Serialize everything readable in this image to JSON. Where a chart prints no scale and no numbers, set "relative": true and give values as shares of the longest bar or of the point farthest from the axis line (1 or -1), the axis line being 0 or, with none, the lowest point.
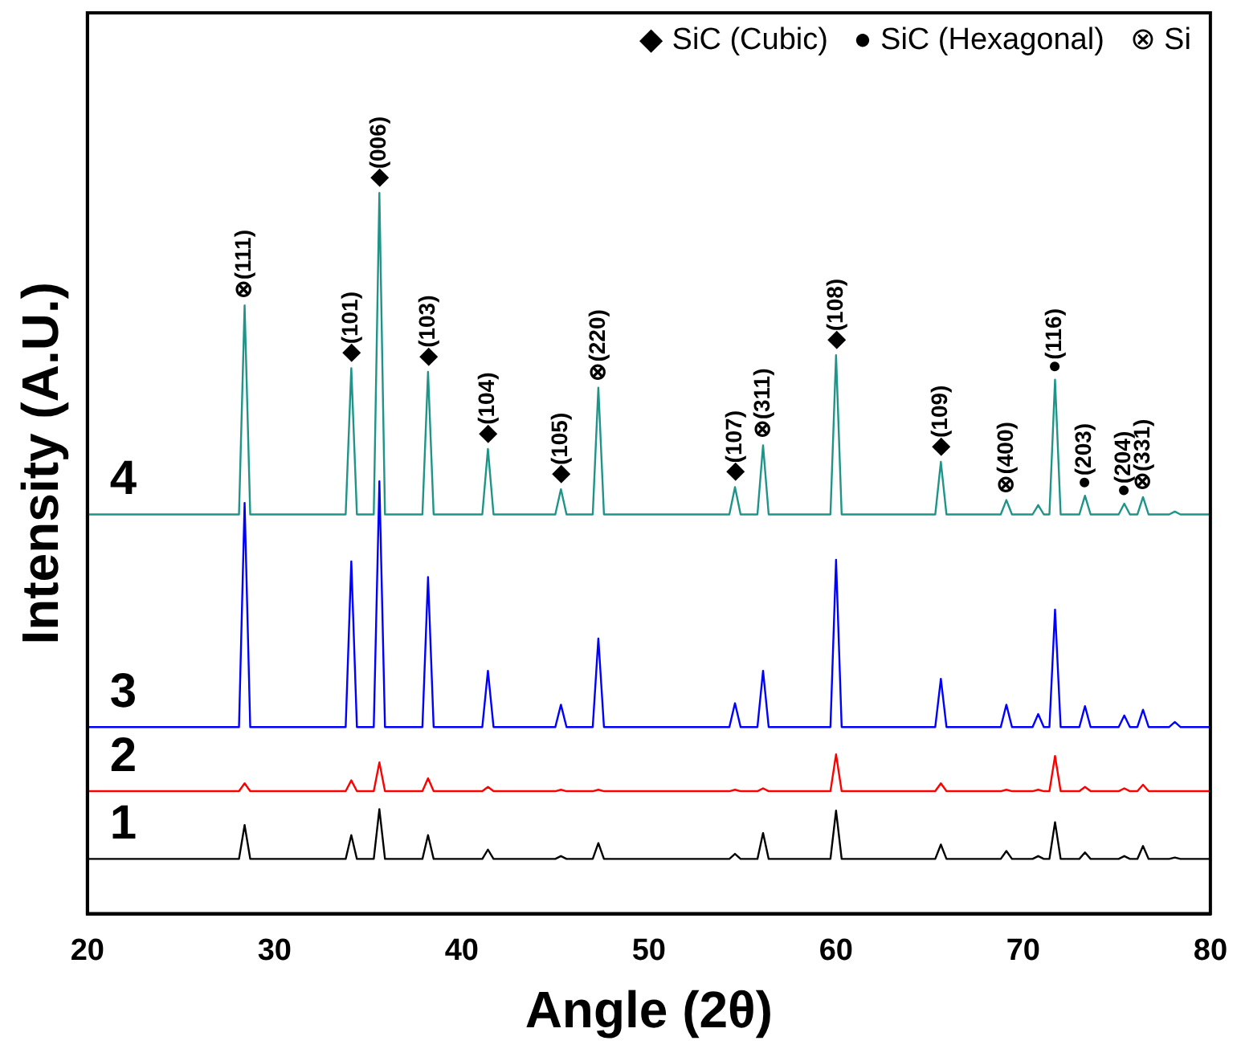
{
  "chart_data": {
    "type": "line",
    "relative": true,
    "xlabel": "Angle (2θ)",
    "ylabel": "Intensity (A.U.)",
    "xlim": [
      20,
      80
    ],
    "xticks": [
      20,
      30,
      40,
      50,
      60,
      70,
      80
    ],
    "x": [
      20,
      28.1,
      28.4,
      28.7,
      33.8,
      34.1,
      34.4,
      35.3,
      35.6,
      35.9,
      37.9,
      38.2,
      38.5,
      41.1,
      41.4,
      41.7,
      45.0,
      45.3,
      45.6,
      47.0,
      47.3,
      47.6,
      54.3,
      54.6,
      54.9,
      55.8,
      56.1,
      56.4,
      59.7,
      60.0,
      60.3,
      65.3,
      65.6,
      65.9,
      68.8,
      69.1,
      69.4,
      70.5,
      70.8,
      71.1,
      71.4,
      71.7,
      72.0,
      73.0,
      73.3,
      73.6,
      75.1,
      75.4,
      75.7,
      76.1,
      76.4,
      76.7,
      77.8,
      78.1,
      78.4,
      80
    ],
    "series": [
      {
        "name": "1",
        "color": "#000000",
        "values": [
          0.076,
          0.076,
          0.123,
          0.076,
          0.076,
          0.109,
          0.076,
          0.076,
          0.145,
          0.076,
          0.076,
          0.109,
          0.076,
          0.076,
          0.089,
          0.076,
          0.076,
          0.08,
          0.076,
          0.076,
          0.098,
          0.076,
          0.076,
          0.083,
          0.076,
          0.076,
          0.112,
          0.076,
          0.076,
          0.143,
          0.076,
          0.076,
          0.096,
          0.076,
          0.076,
          0.087,
          0.076,
          0.076,
          0.08,
          0.076,
          0.076,
          0.127,
          0.076,
          0.076,
          0.085,
          0.076,
          0.076,
          0.08,
          0.076,
          0.076,
          0.094,
          0.076,
          0.076,
          0.078,
          0.076,
          0.076
        ]
      },
      {
        "name": "2",
        "color": "#ff0000",
        "values": [
          0.17,
          0.17,
          0.181,
          0.17,
          0.17,
          0.185,
          0.17,
          0.17,
          0.21,
          0.17,
          0.17,
          0.188,
          0.17,
          0.17,
          0.176,
          0.17,
          0.17,
          0.172,
          0.17,
          0.17,
          0.172,
          0.17,
          0.17,
          0.172,
          0.17,
          0.17,
          0.174,
          0.17,
          0.17,
          0.221,
          0.17,
          0.17,
          0.181,
          0.17,
          0.17,
          0.172,
          0.17,
          0.17,
          0.172,
          0.17,
          0.17,
          0.219,
          0.17,
          0.17,
          0.176,
          0.17,
          0.17,
          0.174,
          0.17,
          0.17,
          0.179,
          0.17,
          0.17,
          0.17,
          0.17,
          0.17
        ]
      },
      {
        "name": "3",
        "color": "#0000ff",
        "values": [
          0.259,
          0.259,
          0.57,
          0.259,
          0.259,
          0.489,
          0.259,
          0.259,
          0.6,
          0.259,
          0.259,
          0.467,
          0.259,
          0.259,
          0.337,
          0.259,
          0.259,
          0.29,
          0.259,
          0.259,
          0.382,
          0.259,
          0.259,
          0.292,
          0.259,
          0.259,
          0.337,
          0.259,
          0.259,
          0.491,
          0.259,
          0.259,
          0.326,
          0.259,
          0.259,
          0.29,
          0.259,
          0.259,
          0.277,
          0.259,
          0.259,
          0.422,
          0.259,
          0.259,
          0.288,
          0.259,
          0.259,
          0.275,
          0.259,
          0.259,
          0.283,
          0.259,
          0.259,
          0.266,
          0.259,
          0.259
        ]
      },
      {
        "name": "4",
        "color": "#1f9488",
        "values": [
          0.554,
          0.554,
          0.844,
          0.554,
          0.554,
          0.757,
          0.554,
          0.554,
          1,
          0.554,
          0.554,
          0.752,
          0.554,
          0.554,
          0.645,
          0.554,
          0.554,
          0.589,
          0.554,
          0.554,
          0.73,
          0.554,
          0.554,
          0.592,
          0.554,
          0.554,
          0.65,
          0.554,
          0.554,
          0.775,
          0.554,
          0.554,
          0.627,
          0.554,
          0.554,
          0.574,
          0.554,
          0.554,
          0.567,
          0.554,
          0.554,
          0.741,
          0.554,
          0.554,
          0.58,
          0.554,
          0.554,
          0.569,
          0.554,
          0.554,
          0.578,
          0.554,
          0.554,
          0.558,
          0.554,
          0.554
        ]
      }
    ],
    "annotations": [
      "◆ SiC (Cubic)   ● SiC (Hexagonal)   ⊗ Si",
      {
        "text": "⊗(111)",
        "x": 28.4,
        "y": 0.844
      },
      {
        "text": "◆(101)",
        "x": 34.1,
        "y": 0.757
      },
      {
        "text": "◆(006)",
        "x": 35.6,
        "y": 1
      },
      {
        "text": "◆(103)",
        "x": 38.2,
        "y": 0.752
      },
      {
        "text": "◆(104)",
        "x": 41.4,
        "y": 0.645
      },
      {
        "text": "◆(105)",
        "x": 45.3,
        "y": 0.589
      },
      {
        "text": "⊗(220)",
        "x": 47.3,
        "y": 0.73
      },
      {
        "text": "◆(107)",
        "x": 54.6,
        "y": 0.592
      },
      {
        "text": "⊗(311)",
        "x": 56.1,
        "y": 0.65
      },
      {
        "text": "◆(108)",
        "x": 60.0,
        "y": 0.775
      },
      {
        "text": "◆(109)",
        "x": 65.6,
        "y": 0.627
      },
      {
        "text": "⊗(400)",
        "x": 69.1,
        "y": 0.574
      },
      {
        "text": "●(116)",
        "x": 71.7,
        "y": 0.741
      },
      {
        "text": "●(203)",
        "x": 73.3,
        "y": 0.58
      },
      {
        "text": "●(204)",
        "x": 75.4,
        "y": 0.569
      },
      {
        "text": "⊗(331)",
        "x": 76.4,
        "y": 0.578
      }
    ]
  }
}
